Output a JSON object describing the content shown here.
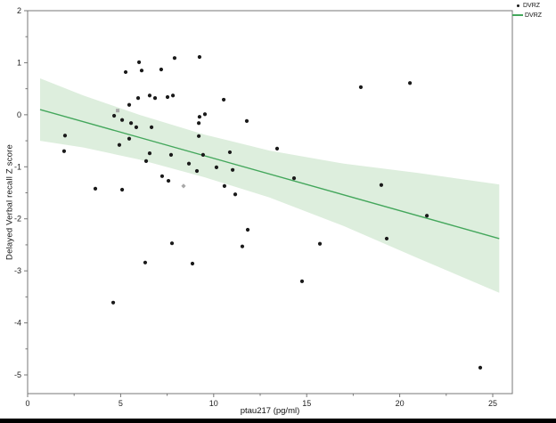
{
  "figure": {
    "y_axis_title": "Delayed Verbal recall Z score",
    "x_axis_title": "ptau217 (pg/ml)"
  },
  "legend": {
    "items": [
      {
        "label": "DVRZ",
        "marker": "dot-icon",
        "color": "#1a1a1a"
      },
      {
        "label": "DVRZ",
        "marker": "line-icon",
        "color": "#44a75c"
      }
    ]
  },
  "colors": {
    "point": "#1a1a1a",
    "gray_point": "#a9a9a9",
    "regression_line": "#44a75c",
    "ci_band": "#ddeedd",
    "frame": "#777777",
    "tick_label": "#222222"
  },
  "chart_data": {
    "type": "scatter",
    "title": "",
    "xlabel": "ptau217 (pg/ml)",
    "ylabel": "Delayed Verbal recall Z score",
    "xlim": [
      0,
      26.05
    ],
    "ylim": [
      -5.36,
      2
    ],
    "x_ticks": [
      0,
      5,
      10,
      15,
      20,
      25
    ],
    "y_ticks": [
      2,
      1,
      0,
      -1,
      -2,
      -3,
      -4,
      -5
    ],
    "x_minor_step": 2.5,
    "y_minor_step": 0.5,
    "grid": false,
    "legend_position": "top-right-outside",
    "series": [
      {
        "name": "DVRZ",
        "type": "scatter",
        "marker": "circle",
        "color": "#1a1a1a",
        "points": [
          [
            5.99,
            1.01
          ],
          [
            5.27,
            0.82
          ],
          [
            6.13,
            0.85
          ],
          [
            7.18,
            0.87
          ],
          [
            7.9,
            1.09
          ],
          [
            9.24,
            1.11
          ],
          [
            5.94,
            0.32
          ],
          [
            6.56,
            0.37
          ],
          [
            6.85,
            0.32
          ],
          [
            7.52,
            0.34
          ],
          [
            7.81,
            0.37
          ],
          [
            5.46,
            0.19
          ],
          [
            4.65,
            -0.02
          ],
          [
            5.08,
            -0.1
          ],
          [
            5.56,
            -0.16
          ],
          [
            5.84,
            -0.24
          ],
          [
            6.66,
            -0.24
          ],
          [
            2.01,
            -0.4
          ],
          [
            5.46,
            -0.46
          ],
          [
            4.93,
            -0.58
          ],
          [
            1.96,
            -0.7
          ],
          [
            6.56,
            -0.74
          ],
          [
            7.71,
            -0.77
          ],
          [
            6.37,
            -0.89
          ],
          [
            7.23,
            -1.18
          ],
          [
            7.57,
            -1.27
          ],
          [
            3.64,
            -1.42
          ],
          [
            5.08,
            -1.44
          ],
          [
            7.76,
            -2.47
          ],
          [
            6.32,
            -2.84
          ],
          [
            4.6,
            -3.61
          ],
          [
            10.54,
            0.29
          ],
          [
            9.53,
            0.01
          ],
          [
            9.24,
            -0.04
          ],
          [
            9.2,
            -0.16
          ],
          [
            11.78,
            -0.12
          ],
          [
            9.2,
            -0.41
          ],
          [
            10.87,
            -0.72
          ],
          [
            13.41,
            -0.65
          ],
          [
            9.43,
            -0.77
          ],
          [
            8.67,
            -0.94
          ],
          [
            9.1,
            -1.08
          ],
          [
            10.15,
            -1.01
          ],
          [
            11.02,
            -1.06
          ],
          [
            14.32,
            -1.22
          ],
          [
            10.58,
            -1.37
          ],
          [
            11.16,
            -1.53
          ],
          [
            11.83,
            -2.21
          ],
          [
            11.54,
            -2.53
          ],
          [
            15.71,
            -2.48
          ],
          [
            8.86,
            -2.86
          ],
          [
            14.75,
            -3.2
          ],
          [
            17.91,
            0.53
          ],
          [
            20.55,
            0.61
          ],
          [
            19.01,
            -1.35
          ],
          [
            21.46,
            -1.94
          ],
          [
            19.3,
            -2.38
          ],
          [
            24.33,
            -4.86
          ]
        ]
      },
      {
        "name": "DVRZ-gray",
        "type": "scatter",
        "marker": "square",
        "color": "#a9a9a9",
        "points": [
          [
            4.84,
            0.08
          ]
        ]
      },
      {
        "name": "DVRZ-gray",
        "type": "scatter",
        "marker": "diamond",
        "color": "#a9a9a9",
        "points": [
          [
            8.38,
            -1.37
          ]
        ]
      },
      {
        "name": "DVRZ",
        "type": "regression-line",
        "color": "#44a75c",
        "x1": 0.67,
        "y1": 0.1,
        "x2": 25.35,
        "y2": -2.38
      },
      {
        "name": "confidence-band",
        "type": "band",
        "color": "#ddeedd",
        "x": [
          0.67,
          3.0,
          6.0,
          9.5,
          13.0,
          17.0,
          21.0,
          25.35
        ],
        "top": [
          0.7,
          0.37,
          0.0,
          -0.38,
          -0.69,
          -0.94,
          -1.12,
          -1.34
        ],
        "bottom": [
          -0.5,
          -0.63,
          -0.86,
          -1.2,
          -1.59,
          -2.14,
          -2.76,
          -3.42
        ]
      }
    ]
  }
}
